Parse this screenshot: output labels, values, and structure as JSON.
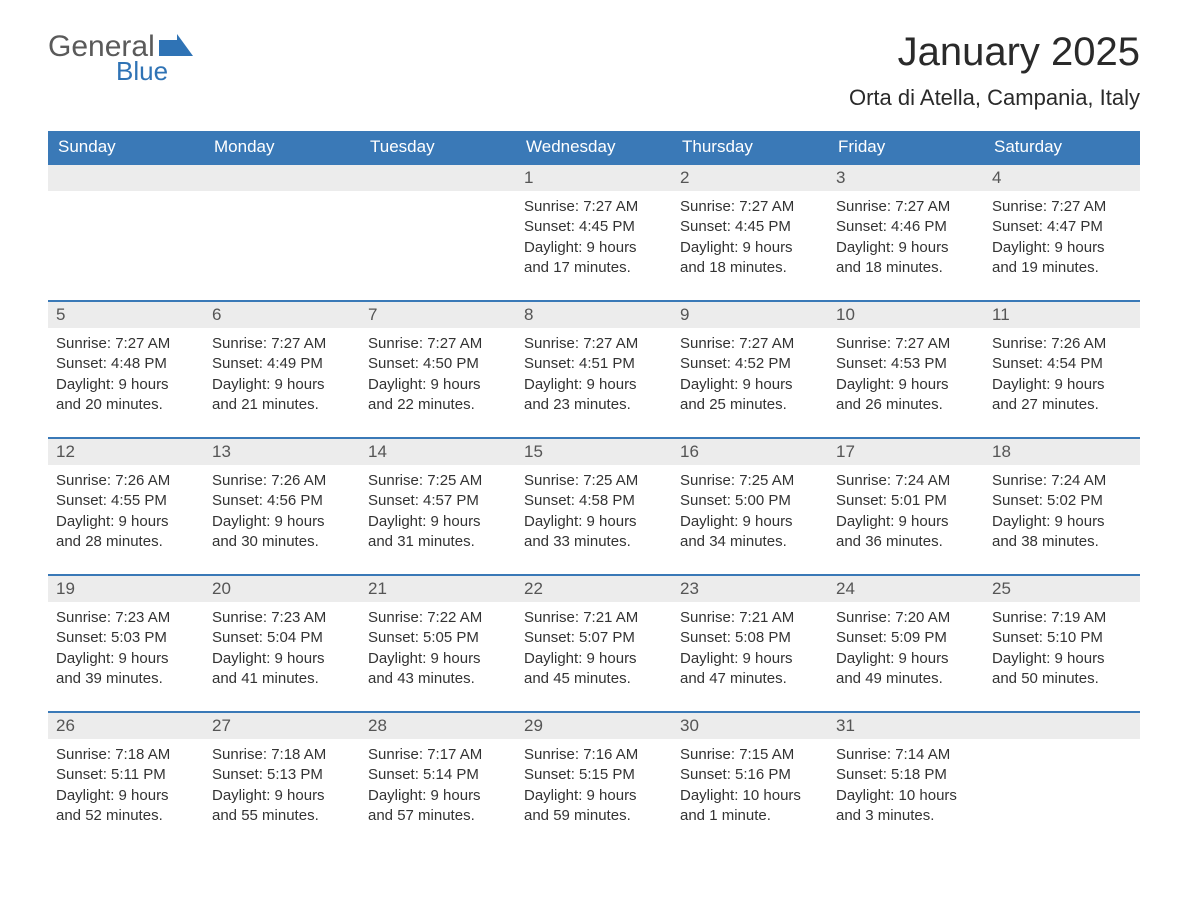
{
  "logo": {
    "text_general": "General",
    "text_blue": "Blue",
    "shape_color": "#2f73b5"
  },
  "title": "January 2025",
  "location": "Orta di Atella, Campania, Italy",
  "colors": {
    "header_bg": "#3a79b7",
    "header_text": "#ffffff",
    "daynum_bg": "#ececec",
    "daynum_text": "#555555",
    "body_text": "#333333",
    "week_border": "#3a79b7"
  },
  "day_names": [
    "Sunday",
    "Monday",
    "Tuesday",
    "Wednesday",
    "Thursday",
    "Friday",
    "Saturday"
  ],
  "weeks": [
    [
      null,
      null,
      null,
      {
        "n": "1",
        "sunrise": "Sunrise: 7:27 AM",
        "sunset": "Sunset: 4:45 PM",
        "daylight": "Daylight: 9 hours and 17 minutes."
      },
      {
        "n": "2",
        "sunrise": "Sunrise: 7:27 AM",
        "sunset": "Sunset: 4:45 PM",
        "daylight": "Daylight: 9 hours and 18 minutes."
      },
      {
        "n": "3",
        "sunrise": "Sunrise: 7:27 AM",
        "sunset": "Sunset: 4:46 PM",
        "daylight": "Daylight: 9 hours and 18 minutes."
      },
      {
        "n": "4",
        "sunrise": "Sunrise: 7:27 AM",
        "sunset": "Sunset: 4:47 PM",
        "daylight": "Daylight: 9 hours and 19 minutes."
      }
    ],
    [
      {
        "n": "5",
        "sunrise": "Sunrise: 7:27 AM",
        "sunset": "Sunset: 4:48 PM",
        "daylight": "Daylight: 9 hours and 20 minutes."
      },
      {
        "n": "6",
        "sunrise": "Sunrise: 7:27 AM",
        "sunset": "Sunset: 4:49 PM",
        "daylight": "Daylight: 9 hours and 21 minutes."
      },
      {
        "n": "7",
        "sunrise": "Sunrise: 7:27 AM",
        "sunset": "Sunset: 4:50 PM",
        "daylight": "Daylight: 9 hours and 22 minutes."
      },
      {
        "n": "8",
        "sunrise": "Sunrise: 7:27 AM",
        "sunset": "Sunset: 4:51 PM",
        "daylight": "Daylight: 9 hours and 23 minutes."
      },
      {
        "n": "9",
        "sunrise": "Sunrise: 7:27 AM",
        "sunset": "Sunset: 4:52 PM",
        "daylight": "Daylight: 9 hours and 25 minutes."
      },
      {
        "n": "10",
        "sunrise": "Sunrise: 7:27 AM",
        "sunset": "Sunset: 4:53 PM",
        "daylight": "Daylight: 9 hours and 26 minutes."
      },
      {
        "n": "11",
        "sunrise": "Sunrise: 7:26 AM",
        "sunset": "Sunset: 4:54 PM",
        "daylight": "Daylight: 9 hours and 27 minutes."
      }
    ],
    [
      {
        "n": "12",
        "sunrise": "Sunrise: 7:26 AM",
        "sunset": "Sunset: 4:55 PM",
        "daylight": "Daylight: 9 hours and 28 minutes."
      },
      {
        "n": "13",
        "sunrise": "Sunrise: 7:26 AM",
        "sunset": "Sunset: 4:56 PM",
        "daylight": "Daylight: 9 hours and 30 minutes."
      },
      {
        "n": "14",
        "sunrise": "Sunrise: 7:25 AM",
        "sunset": "Sunset: 4:57 PM",
        "daylight": "Daylight: 9 hours and 31 minutes."
      },
      {
        "n": "15",
        "sunrise": "Sunrise: 7:25 AM",
        "sunset": "Sunset: 4:58 PM",
        "daylight": "Daylight: 9 hours and 33 minutes."
      },
      {
        "n": "16",
        "sunrise": "Sunrise: 7:25 AM",
        "sunset": "Sunset: 5:00 PM",
        "daylight": "Daylight: 9 hours and 34 minutes."
      },
      {
        "n": "17",
        "sunrise": "Sunrise: 7:24 AM",
        "sunset": "Sunset: 5:01 PM",
        "daylight": "Daylight: 9 hours and 36 minutes."
      },
      {
        "n": "18",
        "sunrise": "Sunrise: 7:24 AM",
        "sunset": "Sunset: 5:02 PM",
        "daylight": "Daylight: 9 hours and 38 minutes."
      }
    ],
    [
      {
        "n": "19",
        "sunrise": "Sunrise: 7:23 AM",
        "sunset": "Sunset: 5:03 PM",
        "daylight": "Daylight: 9 hours and 39 minutes."
      },
      {
        "n": "20",
        "sunrise": "Sunrise: 7:23 AM",
        "sunset": "Sunset: 5:04 PM",
        "daylight": "Daylight: 9 hours and 41 minutes."
      },
      {
        "n": "21",
        "sunrise": "Sunrise: 7:22 AM",
        "sunset": "Sunset: 5:05 PM",
        "daylight": "Daylight: 9 hours and 43 minutes."
      },
      {
        "n": "22",
        "sunrise": "Sunrise: 7:21 AM",
        "sunset": "Sunset: 5:07 PM",
        "daylight": "Daylight: 9 hours and 45 minutes."
      },
      {
        "n": "23",
        "sunrise": "Sunrise: 7:21 AM",
        "sunset": "Sunset: 5:08 PM",
        "daylight": "Daylight: 9 hours and 47 minutes."
      },
      {
        "n": "24",
        "sunrise": "Sunrise: 7:20 AM",
        "sunset": "Sunset: 5:09 PM",
        "daylight": "Daylight: 9 hours and 49 minutes."
      },
      {
        "n": "25",
        "sunrise": "Sunrise: 7:19 AM",
        "sunset": "Sunset: 5:10 PM",
        "daylight": "Daylight: 9 hours and 50 minutes."
      }
    ],
    [
      {
        "n": "26",
        "sunrise": "Sunrise: 7:18 AM",
        "sunset": "Sunset: 5:11 PM",
        "daylight": "Daylight: 9 hours and 52 minutes."
      },
      {
        "n": "27",
        "sunrise": "Sunrise: 7:18 AM",
        "sunset": "Sunset: 5:13 PM",
        "daylight": "Daylight: 9 hours and 55 minutes."
      },
      {
        "n": "28",
        "sunrise": "Sunrise: 7:17 AM",
        "sunset": "Sunset: 5:14 PM",
        "daylight": "Daylight: 9 hours and 57 minutes."
      },
      {
        "n": "29",
        "sunrise": "Sunrise: 7:16 AM",
        "sunset": "Sunset: 5:15 PM",
        "daylight": "Daylight: 9 hours and 59 minutes."
      },
      {
        "n": "30",
        "sunrise": "Sunrise: 7:15 AM",
        "sunset": "Sunset: 5:16 PM",
        "daylight": "Daylight: 10 hours and 1 minute."
      },
      {
        "n": "31",
        "sunrise": "Sunrise: 7:14 AM",
        "sunset": "Sunset: 5:18 PM",
        "daylight": "Daylight: 10 hours and 3 minutes."
      },
      null
    ]
  ]
}
